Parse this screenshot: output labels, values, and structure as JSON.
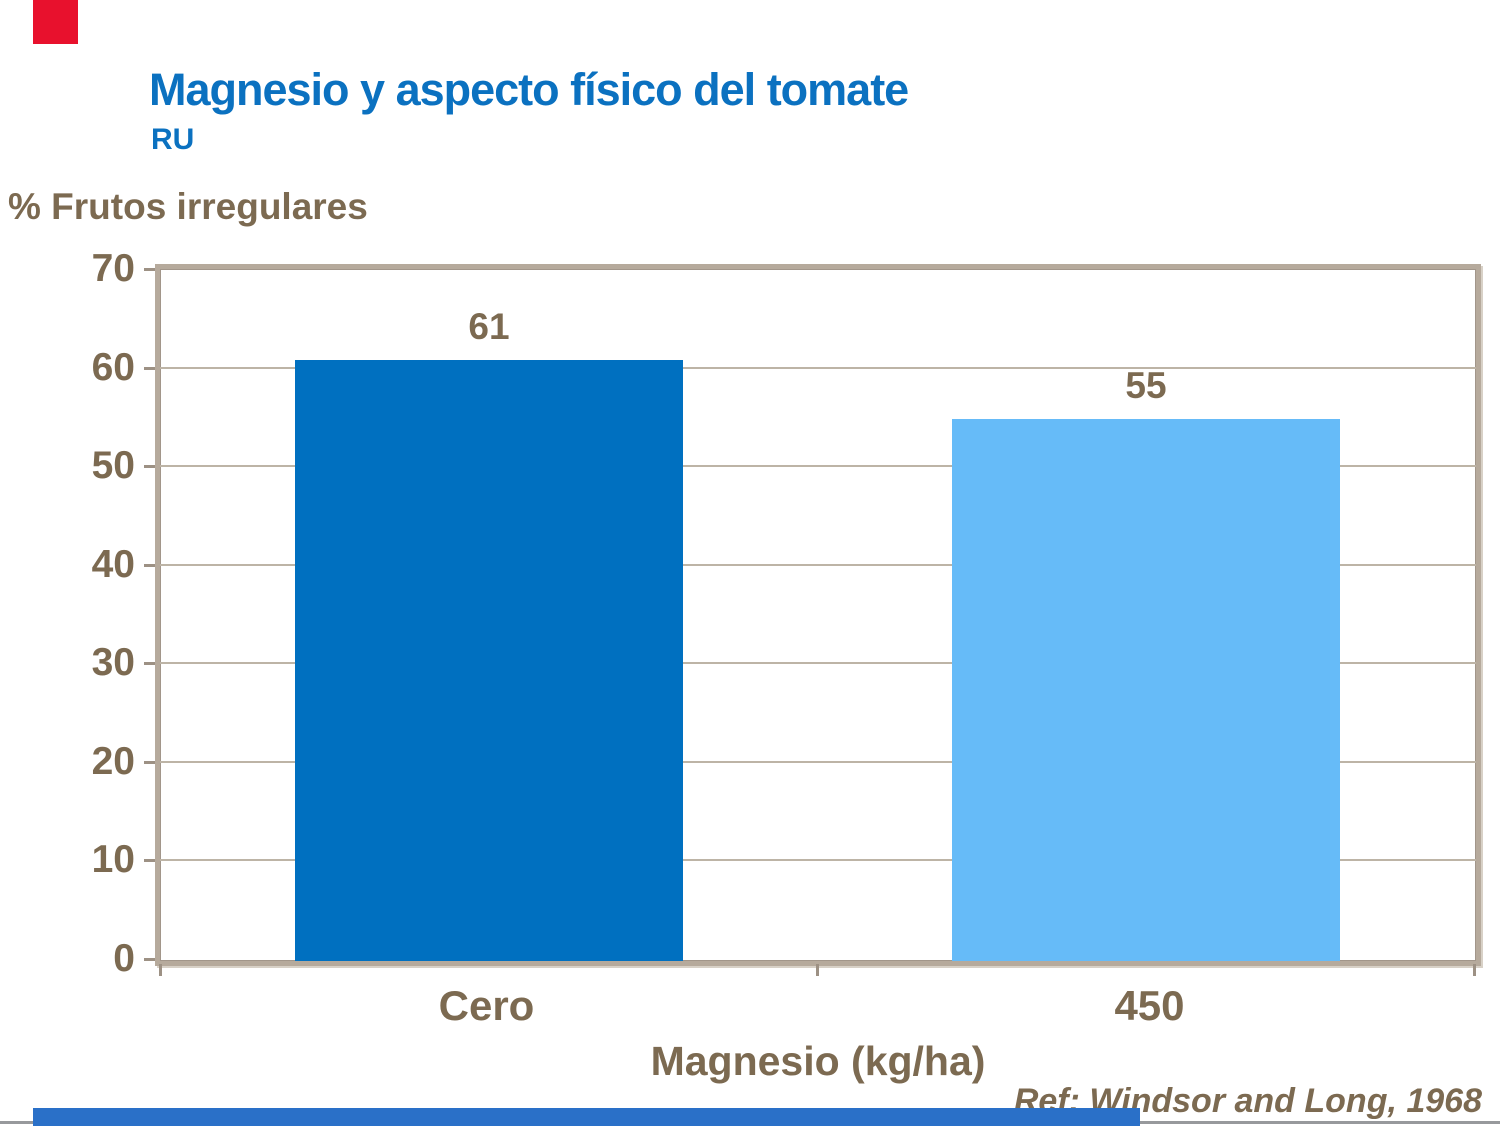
{
  "slide": {
    "title": "Magnesio y aspecto físico del tomate",
    "subtitle": "RU",
    "reference": "Ref: Windsor and Long, 1968",
    "colors": {
      "title_blue": "#0b71c0",
      "text_taupe": "#7c6a51",
      "red_accent": "#e8112d",
      "bottom_bar_blue": "#2a70c8",
      "bottom_rule_gray": "#97999c",
      "plot_frame": "#b6aa9c",
      "gridline": "#bdb4a6"
    }
  },
  "chart_data": {
    "type": "bar",
    "title": "Magnesio y aspecto físico del tomate",
    "subtitle": "RU",
    "categories": [
      "Cero",
      "450"
    ],
    "values": [
      61,
      55
    ],
    "bar_colors": [
      "#0070c0",
      "#66bbf8"
    ],
    "data_labels": [
      "61",
      "55"
    ],
    "xlabel": "Magnesio (kg/ha)",
    "ylabel": "% Frutos irregulares",
    "ylim": [
      0,
      70
    ],
    "yticks": [
      0,
      10,
      20,
      30,
      40,
      50,
      60,
      70
    ],
    "grid": true,
    "legend": false,
    "bar_width_ratio": 0.59,
    "reference": "Ref: Windsor and Long, 1968"
  }
}
